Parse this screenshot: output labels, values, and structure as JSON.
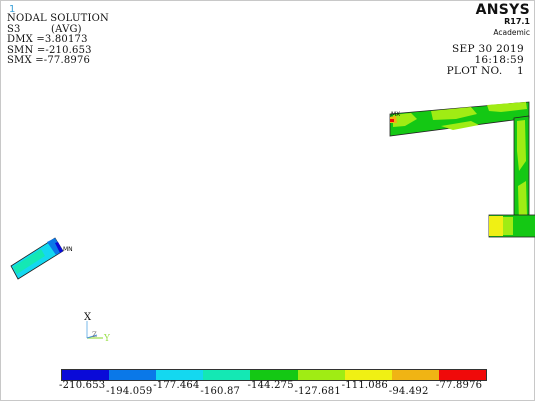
{
  "window_number": "1",
  "header": {
    "title": "NODAL SOLUTION",
    "component": "S3",
    "averaging": "(AVG)",
    "dmx": "DMX =3.80173",
    "smn": "SMN =-210.653",
    "smx": "SMX =-77.8976"
  },
  "brand": {
    "name": "ANSYS",
    "release": "R17.1",
    "edition": "Academic"
  },
  "plot_info": {
    "date": "SEP 30 2019",
    "time": "16:18:59",
    "plot_no": "PLOT NO.    1"
  },
  "markers": {
    "max": "MX",
    "min": "MN"
  },
  "triad": {
    "x": "X",
    "y": "Y",
    "z": "Z"
  },
  "legend": {
    "colors": [
      "#0a0ad8",
      "#0a78e8",
      "#14d8f0",
      "#14e8b4",
      "#14c814",
      "#a0ec14",
      "#f0f014",
      "#f0b414",
      "#f00a0a"
    ],
    "labels": [
      "-210.653",
      "-194.059",
      "-177.464",
      "-160.87",
      "-144.275",
      "-127.681",
      "-111.086",
      "-94.492",
      "-77.8976"
    ]
  }
}
